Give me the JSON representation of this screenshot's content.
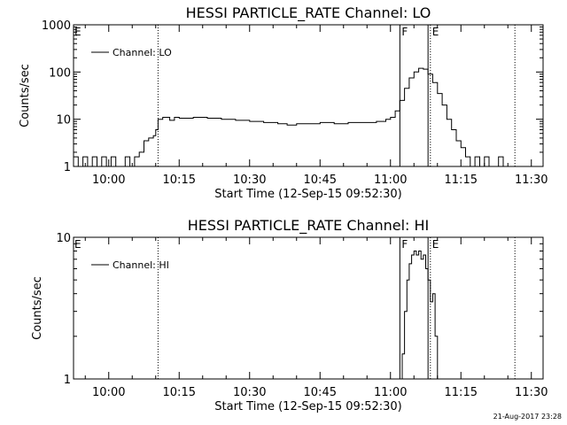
{
  "chart_data": [
    {
      "type": "line",
      "title": "HESSI PARTICLE_RATE Channel: LO",
      "xlabel": "Start Time (12-Sep-15 09:52:30)",
      "ylabel": "Counts/sec",
      "y_scale": "log",
      "ylim": [
        1,
        1000
      ],
      "xlim": [
        "09:52:30",
        "11:32:30"
      ],
      "x_ticks": [
        "10:00",
        "10:15",
        "10:30",
        "10:45",
        "11:00",
        "11:15",
        "11:30"
      ],
      "y_ticks": [
        "1",
        "10",
        "100",
        "1000"
      ],
      "legend_placement": "top-left",
      "series": [
        {
          "name": "Channel: LO",
          "x": [
            "09:52:30",
            "09:53:30",
            "09:54:30",
            "09:55:30",
            "09:56:30",
            "09:57:30",
            "09:58:30",
            "09:59:30",
            "10:00:30",
            "10:01:30",
            "10:02:30",
            "10:03:30",
            "10:04:30",
            "10:05:30",
            "10:06:30",
            "10:07:30",
            "10:08:30",
            "10:09:30",
            "10:10:00",
            "10:10:30",
            "10:11:30",
            "10:13:00",
            "10:14:00",
            "10:15:00",
            "10:18:00",
            "10:21:00",
            "10:24:00",
            "10:27:00",
            "10:30:00",
            "10:33:00",
            "10:36:00",
            "10:38:00",
            "10:40:00",
            "10:42:00",
            "10:45:00",
            "10:48:00",
            "10:51:00",
            "10:54:00",
            "10:57:00",
            "10:59:00",
            "11:00:00",
            "11:01:00",
            "11:02:00",
            "11:03:00",
            "11:04:00",
            "11:05:00",
            "11:06:00",
            "11:07:00",
            "11:08:00",
            "11:09:00",
            "11:10:00",
            "11:11:00",
            "11:12:00",
            "11:13:00",
            "11:14:00",
            "11:15:00",
            "11:16:00",
            "11:17:00",
            "11:18:00",
            "11:19:00",
            "11:20:00",
            "11:21:00",
            "11:22:00",
            "11:23:00",
            "11:24:00",
            "11:25:00"
          ],
          "values": [
            1.6,
            1,
            1.6,
            1,
            1.6,
            1,
            1.6,
            1,
            1.6,
            1,
            1,
            1.6,
            1,
            1.6,
            2,
            3.5,
            4,
            4.5,
            6,
            10,
            11,
            9.5,
            11,
            10.5,
            11,
            10.5,
            10,
            9.5,
            9,
            8.5,
            8,
            7.5,
            8,
            8,
            8.5,
            8,
            8.5,
            8.5,
            9,
            10,
            11,
            15,
            25,
            45,
            75,
            100,
            120,
            115,
            90,
            60,
            35,
            20,
            10,
            6,
            3.5,
            2.5,
            1.6,
            1,
            1.6,
            1,
            1.6,
            1,
            1,
            1.6,
            1,
            1
          ]
        }
      ],
      "markers": [
        {
          "time": "10:10:30",
          "style": "dotted",
          "label": ""
        },
        {
          "time": "11:02:00",
          "style": "solid",
          "label": "F"
        },
        {
          "time": "11:08:00",
          "style": "solid",
          "label": ""
        },
        {
          "time": "11:08:30",
          "style": "dotted",
          "label": "E"
        },
        {
          "time": "11:26:30",
          "style": "dotted",
          "label": ""
        }
      ],
      "corner_label": "E"
    },
    {
      "type": "line",
      "title": "HESSI PARTICLE_RATE Channel: HI",
      "xlabel": "Start Time (12-Sep-15 09:52:30)",
      "ylabel": "Counts/sec",
      "y_scale": "log",
      "ylim": [
        1,
        10
      ],
      "xlim": [
        "09:52:30",
        "11:32:30"
      ],
      "x_ticks": [
        "10:00",
        "10:15",
        "10:30",
        "10:45",
        "11:00",
        "11:15",
        "11:30"
      ],
      "y_ticks": [
        "1",
        "10"
      ],
      "legend_placement": "top-left",
      "series": [
        {
          "name": "Channel: HI",
          "x": [
            "11:02:00",
            "11:02:30",
            "11:03:00",
            "11:03:30",
            "11:04:00",
            "11:04:30",
            "11:05:00",
            "11:05:30",
            "11:06:00",
            "11:06:30",
            "11:07:00",
            "11:07:30",
            "11:08:00",
            "11:08:30",
            "11:09:00",
            "11:09:30",
            "11:10:00"
          ],
          "values": [
            1,
            1.5,
            3,
            5,
            6.5,
            7.5,
            8,
            7.5,
            8,
            7,
            7.5,
            6,
            5,
            3.5,
            4,
            2,
            1
          ]
        }
      ],
      "markers": [
        {
          "time": "10:10:30",
          "style": "dotted",
          "label": ""
        },
        {
          "time": "11:02:00",
          "style": "solid",
          "label": "F"
        },
        {
          "time": "11:08:00",
          "style": "solid",
          "label": ""
        },
        {
          "time": "11:08:30",
          "style": "dotted",
          "label": "E"
        },
        {
          "time": "11:26:30",
          "style": "dotted",
          "label": ""
        }
      ],
      "corner_label": "E"
    }
  ],
  "footer": {
    "timestamp": "21-Aug-2017 23:28"
  }
}
